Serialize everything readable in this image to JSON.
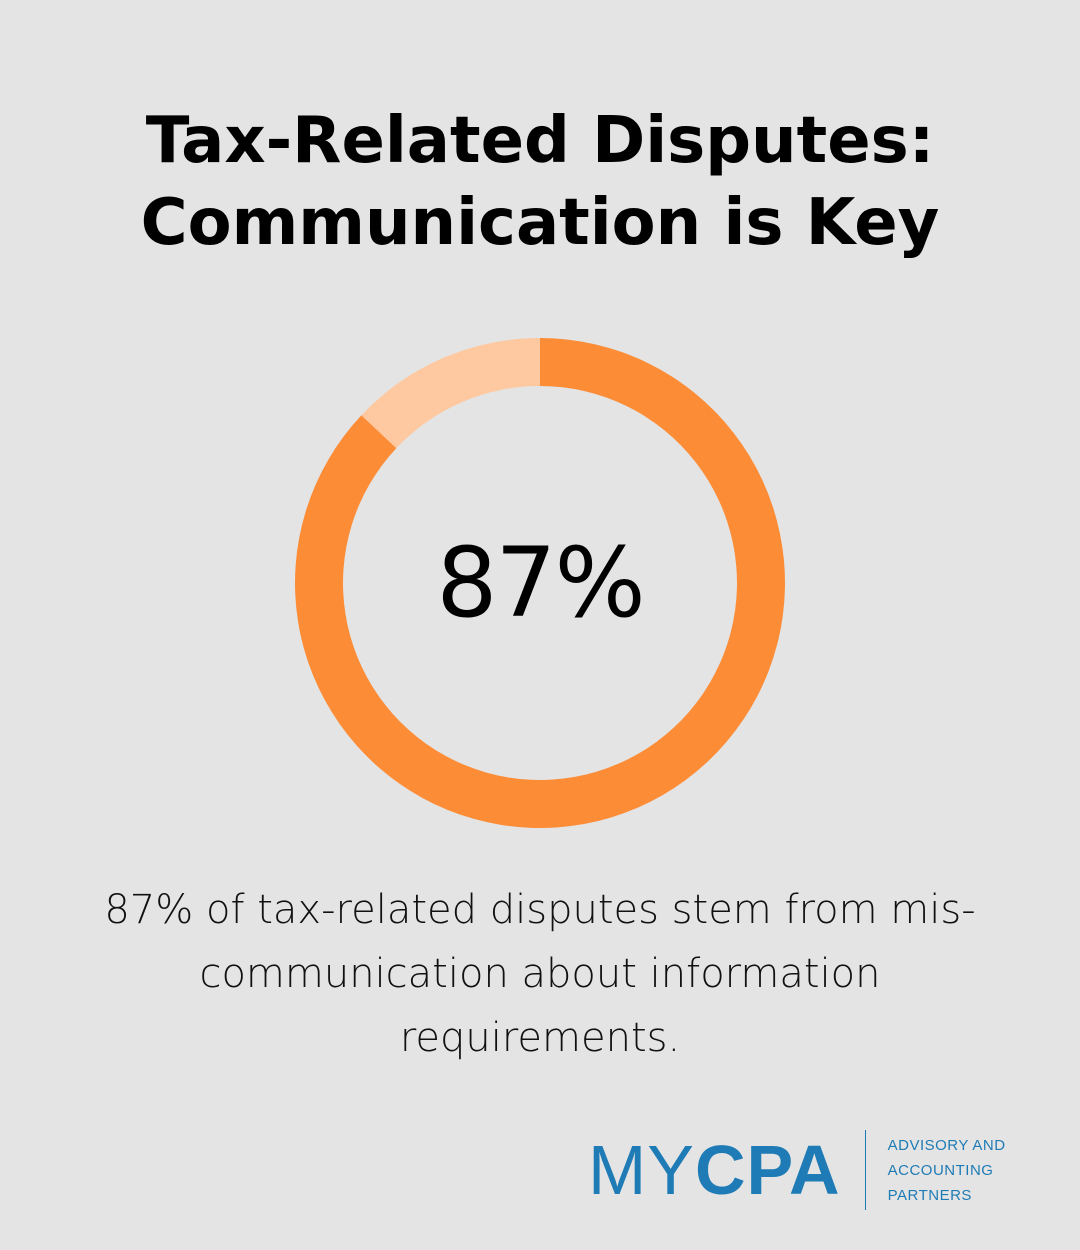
{
  "title_lines": [
    "Tax-Related Disputes:",
    "Communication is Key"
  ],
  "chart_data": {
    "type": "pie",
    "value": 87,
    "max": 100,
    "center_label": "87%",
    "colors": {
      "filled": "#fd8c37",
      "remainder": "#fec9a1"
    }
  },
  "description_lines": [
    "87% of tax-related disputes stem from mis-",
    "communication about information",
    "requirements."
  ],
  "logo": {
    "word_part1": "MY",
    "word_part2": "CPA",
    "tagline_lines": [
      "ADVISORY AND",
      "ACCOUNTING",
      "PARTNERS"
    ],
    "color": "#1f7bb6"
  },
  "background_color": "#e3e4e3"
}
